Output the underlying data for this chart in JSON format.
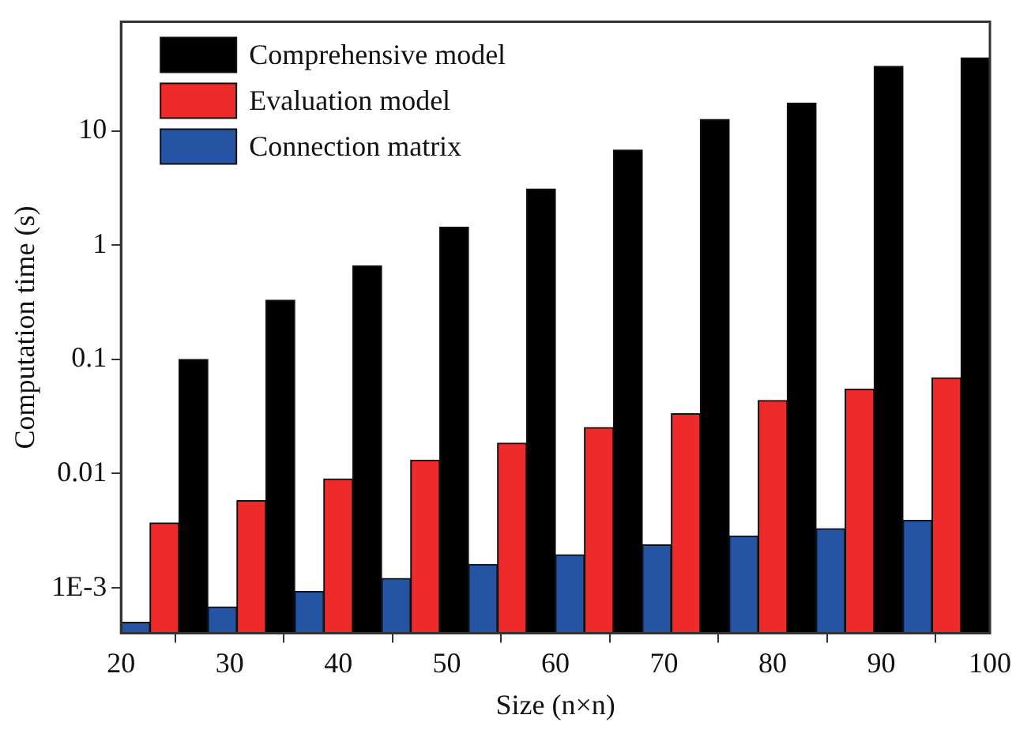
{
  "chart_data": {
    "type": "bar",
    "xlabel": "Size (n×n)",
    "ylabel": "Computation time (s)",
    "log": "y",
    "legend": "top left",
    "grid": false,
    "x": [
      24,
      32,
      40,
      48,
      56,
      64,
      72,
      80,
      88,
      96
    ],
    "xlim": [
      20,
      100
    ],
    "xticks": [
      20,
      30,
      40,
      50,
      60,
      70,
      80,
      90,
      100
    ],
    "ylim": [
      0.0004,
      90
    ],
    "yticks": [
      {
        "value": 0.001,
        "label": "1E-3"
      },
      0.01,
      0.1,
      1,
      10
    ],
    "series": [
      {
        "name": "Comprehensive model",
        "color": "#000000",
        "values": [
          0.1,
          0.33,
          0.66,
          1.44,
          3.1,
          6.8,
          12.6,
          17.5,
          36.7,
          43.6
        ]
      },
      {
        "name": "Evaluation model",
        "color": "#ee2a2a",
        "values": [
          0.0037,
          0.0058,
          0.009,
          0.0131,
          0.0185,
          0.0253,
          0.0334,
          0.0437,
          0.055,
          0.069
        ]
      },
      {
        "name": "Connection matrix",
        "color": "#2554a4",
        "values": [
          0.0005,
          0.00068,
          0.00093,
          0.00121,
          0.0016,
          0.00195,
          0.00238,
          0.00284,
          0.0033,
          0.0039
        ]
      }
    ]
  }
}
